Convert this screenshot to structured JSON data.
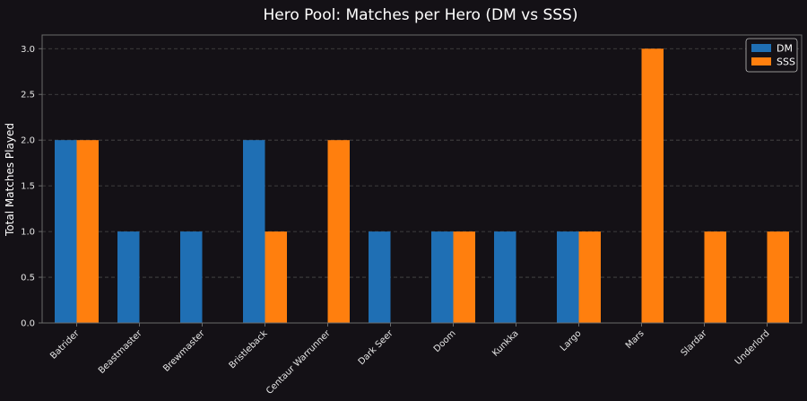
{
  "colors": {
    "background": "#141116",
    "dm": "#1f6fb4",
    "sss": "#ff7f0e",
    "grid": "#4a4a4a",
    "axis": "#6a6a6a",
    "text": "#ffffff"
  },
  "chart_data": {
    "type": "bar",
    "title": "Hero Pool: Matches per Hero (DM vs SSS)",
    "xlabel": "",
    "ylabel": "Total Matches Played",
    "ylim": [
      0,
      3.15
    ],
    "yticks": [
      "0.0",
      "0.5",
      "1.0",
      "1.5",
      "2.0",
      "2.5",
      "3.0"
    ],
    "grid": "y-dashed",
    "legend_position": "top-right",
    "categories": [
      "Batrider",
      "Beastmaster",
      "Brewmaster",
      "Bristleback",
      "Centaur Warrunner",
      "Dark Seer",
      "Doom",
      "Kunkka",
      "Largo",
      "Mars",
      "Slardar",
      "Underlord"
    ],
    "series": [
      {
        "name": "DM",
        "values": [
          2,
          1,
          1,
          2,
          0,
          1,
          1,
          1,
          1,
          0,
          0,
          0
        ]
      },
      {
        "name": "SSS",
        "values": [
          2,
          0,
          0,
          1,
          2,
          0,
          1,
          0,
          1,
          3,
          1,
          1
        ]
      }
    ]
  }
}
